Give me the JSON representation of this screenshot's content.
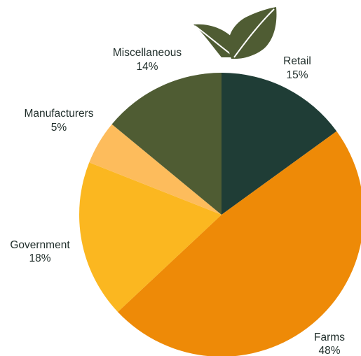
{
  "chart_data": {
    "type": "pie",
    "title": "",
    "slices": [
      {
        "label": "Retail",
        "value": 15,
        "display": "15%",
        "color": "#1f3d36"
      },
      {
        "label": "Farms",
        "value": 48,
        "display": "48%",
        "color": "#ee8a07"
      },
      {
        "label": "Government",
        "value": 18,
        "display": "18%",
        "color": "#fbb720"
      },
      {
        "label": "Manufacturers",
        "value": 5,
        "display": "5%",
        "color": "#fdbc5c"
      },
      {
        "label": "Miscellaneous",
        "value": 14,
        "display": "14%",
        "color": "#4f5c33"
      }
    ],
    "start": "12 o'clock",
    "direction": "clockwise",
    "legend": "none",
    "labels": "outside"
  },
  "decoration": {
    "icon": "leaf-icon",
    "color": "#4f5c33"
  }
}
